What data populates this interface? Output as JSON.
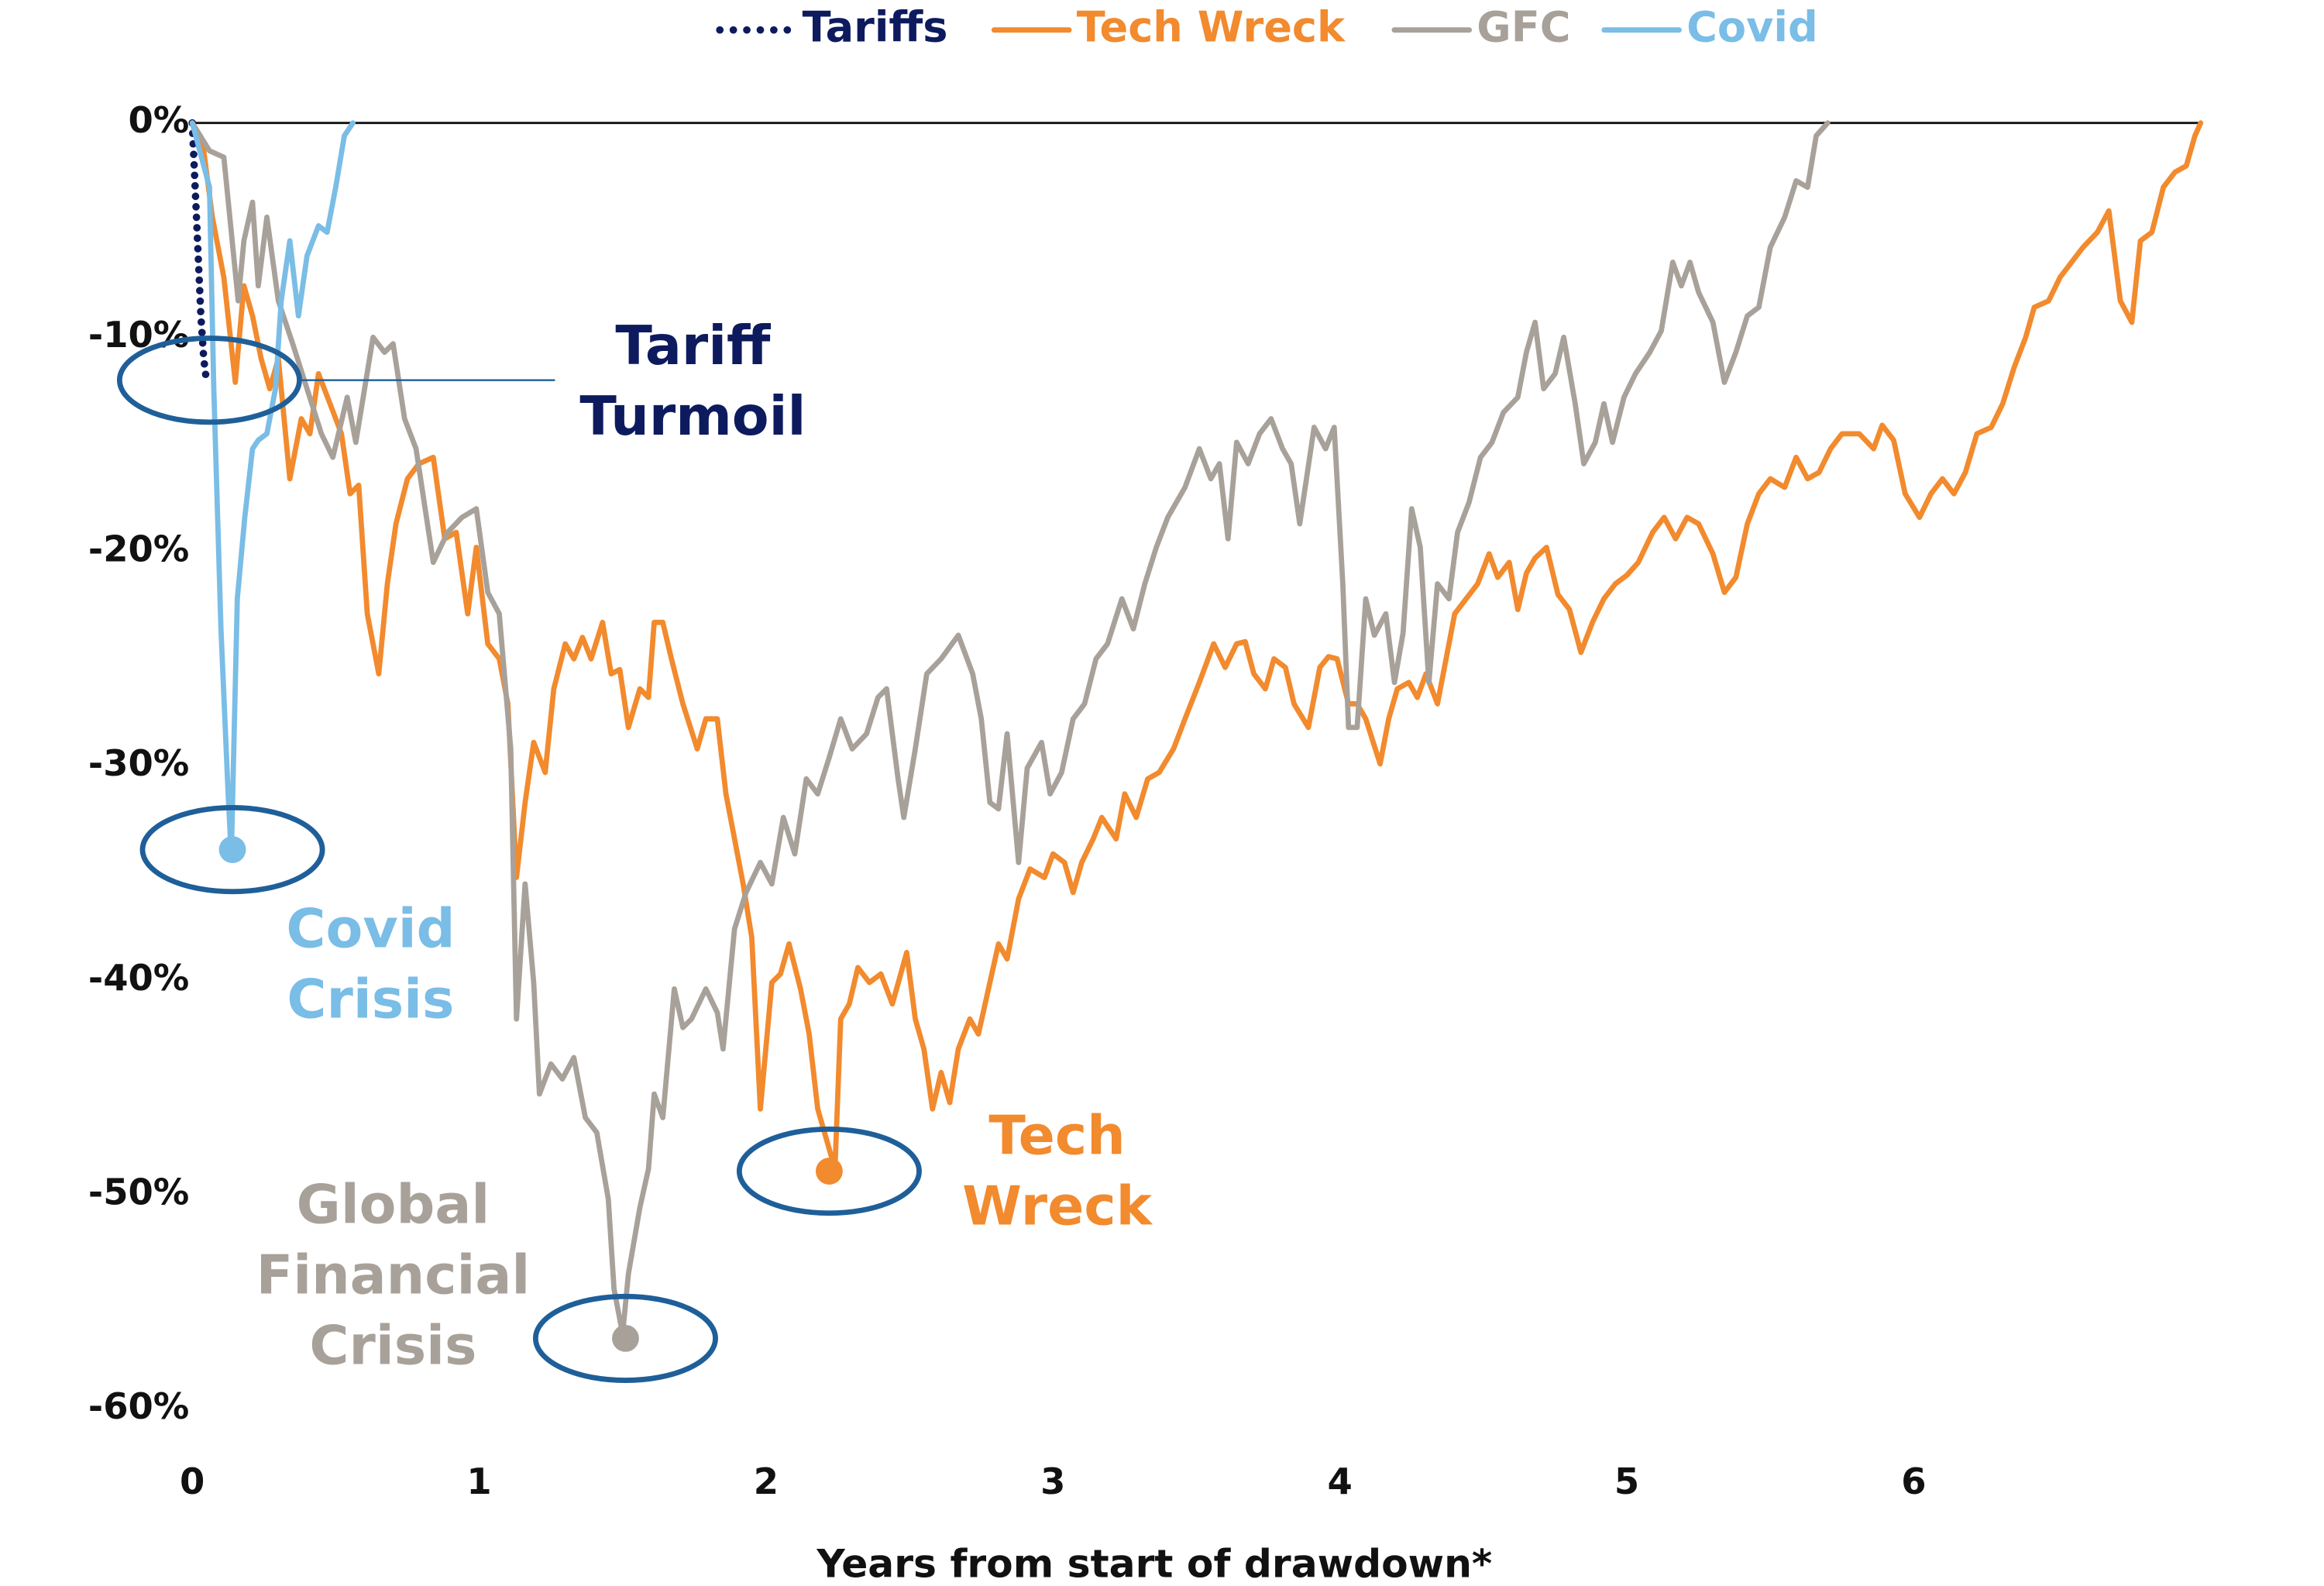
{
  "chart_data": {
    "type": "line",
    "x_label": "Years from start of drawdown*",
    "xlim": [
      0,
      7
    ],
    "xticks": [
      0,
      1,
      2,
      3,
      4,
      5,
      6
    ],
    "ylim": [
      -60,
      0
    ],
    "yticks": [
      {
        "value": 0,
        "label": "0%"
      },
      {
        "value": -10,
        "label": "-10%"
      },
      {
        "value": -20,
        "label": "-20%"
      },
      {
        "value": -30,
        "label": "-30%"
      },
      {
        "value": -40,
        "label": "-40%"
      },
      {
        "value": -50,
        "label": "-50%"
      },
      {
        "value": -60,
        "label": "-60%"
      }
    ],
    "legend": "top",
    "series": [
      {
        "name": "Tariffs",
        "color": "#0d1b5e",
        "line_style": "dotted",
        "x": [
          0,
          0.01,
          0.02,
          0.03,
          0.04,
          0.05
        ],
        "values": [
          0,
          -3,
          -6,
          -9,
          -11,
          -12.1
        ]
      },
      {
        "name": "Tech Wreck",
        "color": "#f28a2e",
        "line_style": "solid",
        "x": [
          0,
          0.04,
          0.07,
          0.11,
          0.15,
          0.18,
          0.21,
          0.24,
          0.27,
          0.3,
          0.34,
          0.38,
          0.41,
          0.44,
          0.48,
          0.52,
          0.55,
          0.58,
          0.61,
          0.65,
          0.68,
          0.71,
          0.75,
          0.79,
          0.84,
          0.88,
          0.92,
          0.96,
          0.99,
          1.03,
          1.07,
          1.1,
          1.13,
          1.16,
          1.19,
          1.23,
          1.26,
          1.3,
          1.33,
          1.36,
          1.39,
          1.43,
          1.46,
          1.49,
          1.52,
          1.56,
          1.59,
          1.61,
          1.64,
          1.67,
          1.71,
          1.76,
          1.79,
          1.83,
          1.86,
          1.89,
          1.92,
          1.95,
          1.98,
          2.02,
          2.05,
          2.08,
          2.12,
          2.15,
          2.18,
          2.21,
          2.24,
          2.26,
          2.29,
          2.32,
          2.36,
          2.4,
          2.44,
          2.49,
          2.52,
          2.55,
          2.58,
          2.61,
          2.64,
          2.67,
          2.71,
          2.74,
          2.78,
          2.81,
          2.84,
          2.88,
          2.92,
          2.97,
          3.0,
          3.04,
          3.07,
          3.1,
          3.14,
          3.17,
          3.22,
          3.25,
          3.29,
          3.33,
          3.37,
          3.42,
          3.46,
          3.51,
          3.56,
          3.6,
          3.64,
          3.67,
          3.7,
          3.74,
          3.77,
          3.81,
          3.84,
          3.89,
          3.93,
          3.96,
          3.99,
          4.03,
          4.06,
          4.09,
          4.14,
          4.17,
          4.2,
          4.24,
          4.27,
          4.3,
          4.34,
          4.37,
          4.4,
          4.44,
          4.48,
          4.52,
          4.55,
          4.59,
          4.62,
          4.65,
          4.68,
          4.72,
          4.76,
          4.8,
          4.84,
          4.88,
          4.92,
          4.96,
          5.0,
          5.04,
          5.09,
          5.13,
          5.17,
          5.21,
          5.25,
          5.3,
          5.34,
          5.38,
          5.42,
          5.46,
          5.5,
          5.55,
          5.59,
          5.63,
          5.67,
          5.71,
          5.75,
          5.81,
          5.86,
          5.89,
          5.93,
          5.97,
          6.02,
          6.06,
          6.1,
          6.14,
          6.18,
          6.22,
          6.27,
          6.31,
          6.35,
          6.39,
          6.42,
          6.47,
          6.51,
          6.55,
          6.59,
          6.64,
          6.68,
          6.72,
          6.76,
          6.79,
          6.83,
          6.87,
          6.91,
          6.95,
          6.98,
          7.0
        ],
        "values": [
          0,
          -1.3,
          -4.4,
          -7.2,
          -12.1,
          -7.6,
          -9.0,
          -11.0,
          -12.4,
          -11.0,
          -16.6,
          -13.8,
          -14.5,
          -11.7,
          -13.1,
          -14.5,
          -17.3,
          -16.9,
          -22.9,
          -25.7,
          -21.5,
          -18.7,
          -16.6,
          -15.9,
          -15.6,
          -19.4,
          -19.1,
          -22.9,
          -19.8,
          -24.3,
          -25.0,
          -27.1,
          -35.2,
          -31.7,
          -28.9,
          -30.3,
          -26.4,
          -24.3,
          -25.0,
          -24.0,
          -25.0,
          -23.3,
          -25.7,
          -25.5,
          -28.2,
          -26.4,
          -26.8,
          -23.3,
          -23.3,
          -25.0,
          -27.1,
          -29.2,
          -27.8,
          -27.8,
          -31.3,
          -33.4,
          -35.5,
          -38.0,
          -46.0,
          -40.1,
          -39.7,
          -38.3,
          -40.4,
          -42.5,
          -46.0,
          -47.4,
          -48.8,
          -41.8,
          -41.1,
          -39.4,
          -40.1,
          -39.7,
          -41.1,
          -38.7,
          -41.8,
          -43.2,
          -46.0,
          -44.3,
          -45.7,
          -43.2,
          -41.8,
          -42.5,
          -40.1,
          -38.3,
          -39.0,
          -36.2,
          -34.8,
          -35.2,
          -34.1,
          -34.5,
          -35.9,
          -34.5,
          -33.4,
          -32.4,
          -33.4,
          -31.3,
          -32.4,
          -30.6,
          -30.3,
          -29.2,
          -27.8,
          -26.1,
          -24.3,
          -25.4,
          -24.3,
          -24.2,
          -25.7,
          -26.4,
          -25.0,
          -25.4,
          -27.1,
          -28.2,
          -25.4,
          -24.9,
          -25.0,
          -27.1,
          -27.1,
          -27.8,
          -29.9,
          -27.8,
          -26.4,
          -26.1,
          -26.8,
          -25.7,
          -27.1,
          -25.0,
          -22.9,
          -22.2,
          -21.5,
          -20.1,
          -21.2,
          -20.5,
          -22.7,
          -21.0,
          -20.3,
          -19.8,
          -22.0,
          -22.7,
          -24.7,
          -23.3,
          -22.2,
          -21.5,
          -21.1,
          -20.5,
          -19.1,
          -18.4,
          -19.4,
          -18.4,
          -18.7,
          -20.1,
          -21.9,
          -21.2,
          -18.7,
          -17.3,
          -16.6,
          -17.0,
          -15.6,
          -16.6,
          -16.3,
          -15.2,
          -14.5,
          -14.5,
          -15.2,
          -14.1,
          -14.8,
          -17.3,
          -18.4,
          -17.3,
          -16.6,
          -17.3,
          -16.3,
          -14.5,
          -14.2,
          -13.1,
          -11.4,
          -10.0,
          -8.6,
          -8.3,
          -7.2,
          -6.5,
          -5.8,
          -5.1,
          -4.1,
          -8.3,
          -9.3,
          -5.5,
          -5.1,
          -3.0,
          -2.3,
          -2.0,
          -0.6,
          0
        ]
      },
      {
        "name": "GFC",
        "color": "#a8a19a",
        "line_style": "solid",
        "x": [
          0,
          0.06,
          0.11,
          0.16,
          0.18,
          0.21,
          0.23,
          0.26,
          0.3,
          0.35,
          0.4,
          0.45,
          0.49,
          0.54,
          0.57,
          0.63,
          0.67,
          0.7,
          0.74,
          0.78,
          0.84,
          0.89,
          0.94,
          0.99,
          1.03,
          1.07,
          1.11,
          1.13,
          1.16,
          1.19,
          1.21,
          1.25,
          1.29,
          1.33,
          1.37,
          1.41,
          1.45,
          1.47,
          1.5,
          1.52,
          1.56,
          1.59,
          1.61,
          1.64,
          1.68,
          1.71,
          1.74,
          1.79,
          1.83,
          1.85,
          1.89,
          1.93,
          1.98,
          2.02,
          2.06,
          2.1,
          2.14,
          2.18,
          2.22,
          2.26,
          2.3,
          2.35,
          2.39,
          2.42,
          2.46,
          2.48,
          2.52,
          2.56,
          2.61,
          2.67,
          2.72,
          2.75,
          2.78,
          2.81,
          2.84,
          2.88,
          2.91,
          2.96,
          2.99,
          3.03,
          3.07,
          3.11,
          3.15,
          3.19,
          3.24,
          3.28,
          3.32,
          3.36,
          3.4,
          3.46,
          3.51,
          3.55,
          3.58,
          3.61,
          3.64,
          3.68,
          3.72,
          3.76,
          3.8,
          3.83,
          3.86,
          3.91,
          3.95,
          3.98,
          4.01,
          4.03,
          4.06,
          4.09,
          4.12,
          4.16,
          4.19,
          4.22,
          4.25,
          4.28,
          4.31,
          4.34,
          4.38,
          4.41,
          4.45,
          4.49,
          4.53,
          4.57,
          4.62,
          4.65,
          4.68,
          4.71,
          4.75,
          4.78,
          4.82,
          4.85,
          4.89,
          4.92,
          4.95,
          4.99,
          5.03,
          5.08,
          5.12,
          5.16,
          5.19,
          5.22,
          5.25,
          5.3,
          5.34,
          5.38,
          5.42,
          5.46,
          5.5,
          5.55,
          5.59,
          5.63,
          5.66,
          5.7
        ],
        "values": [
          0,
          -1.3,
          -1.6,
          -8.3,
          -5.5,
          -3.7,
          -7.6,
          -4.4,
          -8.3,
          -10.3,
          -12.4,
          -14.5,
          -15.6,
          -12.8,
          -14.9,
          -10.0,
          -10.7,
          -10.3,
          -13.8,
          -15.2,
          -20.5,
          -19.1,
          -18.4,
          -18.0,
          -21.9,
          -22.9,
          -29.2,
          -41.8,
          -35.5,
          -40.1,
          -45.3,
          -43.9,
          -44.6,
          -43.6,
          -46.4,
          -47.1,
          -50.2,
          -54.4,
          -56.5,
          -53.7,
          -50.6,
          -48.8,
          -45.3,
          -46.4,
          -40.4,
          -42.2,
          -41.8,
          -40.4,
          -41.5,
          -43.2,
          -37.6,
          -35.9,
          -34.5,
          -35.5,
          -32.4,
          -34.1,
          -30.6,
          -31.3,
          -29.6,
          -27.8,
          -29.2,
          -28.5,
          -26.8,
          -26.4,
          -30.6,
          -32.4,
          -29.2,
          -25.7,
          -25.0,
          -23.9,
          -25.7,
          -27.8,
          -31.7,
          -32.0,
          -28.5,
          -34.5,
          -30.1,
          -28.9,
          -31.3,
          -30.3,
          -27.8,
          -27.1,
          -25.0,
          -24.3,
          -22.2,
          -23.6,
          -21.5,
          -19.8,
          -18.4,
          -17.0,
          -15.2,
          -16.6,
          -15.9,
          -19.4,
          -14.9,
          -15.9,
          -14.5,
          -13.8,
          -15.2,
          -15.9,
          -18.7,
          -14.2,
          -15.2,
          -14.2,
          -21.5,
          -28.2,
          -28.2,
          -22.2,
          -23.9,
          -22.9,
          -26.1,
          -23.8,
          -18.0,
          -19.8,
          -26.1,
          -21.5,
          -22.2,
          -19.1,
          -17.7,
          -15.6,
          -14.9,
          -13.5,
          -12.8,
          -10.7,
          -9.3,
          -12.4,
          -11.7,
          -10.0,
          -13.1,
          -15.9,
          -14.9,
          -13.1,
          -14.9,
          -12.8,
          -11.7,
          -10.7,
          -9.7,
          -6.5,
          -7.6,
          -6.5,
          -7.9,
          -9.3,
          -12.1,
          -10.7,
          -9.0,
          -8.6,
          -5.8,
          -4.4,
          -2.7,
          -3.0,
          -0.6,
          0
        ]
      },
      {
        "name": "Covid",
        "color": "#7abde6",
        "line_style": "solid",
        "x": [
          0,
          0.06,
          0.075,
          0.1,
          0.125,
          0.136,
          0.157,
          0.183,
          0.21,
          0.23,
          0.26,
          0.29,
          0.31,
          0.34,
          0.37,
          0.4,
          0.44,
          0.47,
          0.5,
          0.53,
          0.56
        ],
        "values": [
          0,
          -3,
          -12.4,
          -23.6,
          -31.3,
          -34.2,
          -22.2,
          -18.4,
          -15.2,
          -14.8,
          -14.5,
          -12.4,
          -8.3,
          -5.5,
          -9.0,
          -6.2,
          -4.8,
          -5.1,
          -3.0,
          -0.6,
          0
        ]
      }
    ],
    "annotations": [
      {
        "lines": [
          "Tariff",
          "Turmoil"
        ],
        "color": "#0d1b5e",
        "x": 0.06,
        "y": -12.0
      },
      {
        "lines": [
          "Covid",
          "Crisis"
        ],
        "color": "#7abde6",
        "x": 0.14,
        "y": -33.9
      },
      {
        "lines": [
          "Global",
          "Financial",
          "Crisis"
        ],
        "color": "#a8a19a",
        "x": 1.51,
        "y": -56.7
      },
      {
        "lines": [
          "Tech",
          "Wreck"
        ],
        "color": "#f28a2e",
        "x": 2.22,
        "y": -48.9
      }
    ]
  }
}
